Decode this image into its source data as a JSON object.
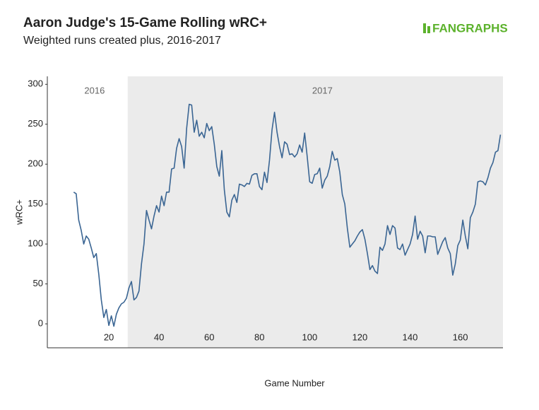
{
  "chart_data": {
    "type": "line",
    "title": "Aaron Judge's 15-Game Rolling wRC+",
    "subtitle": "Weighted runs created plus, 2016-2017",
    "logo": "FANGRAPHS",
    "xlabel": "Game Number",
    "ylabel": "wRC+",
    "xlim": [
      -4.5,
      177
    ],
    "ylim": [
      -30,
      310
    ],
    "xticks": [
      20,
      40,
      60,
      80,
      100,
      120,
      140,
      160
    ],
    "yticks": [
      0,
      50,
      100,
      150,
      200,
      250,
      300
    ],
    "regions": [
      {
        "label": "2016",
        "x": [
          -4.5,
          27.5
        ],
        "fill": "#ffffff"
      },
      {
        "label": "2017",
        "x": [
          27.5,
          177
        ],
        "fill": "#ebebeb"
      }
    ],
    "x": [
      6,
      7,
      8,
      9,
      10,
      11,
      12,
      13,
      14,
      15,
      16,
      17,
      18,
      19,
      20,
      21,
      22,
      23,
      24,
      25,
      26,
      27,
      28,
      29,
      30,
      31,
      32,
      33,
      34,
      35,
      36,
      37,
      38,
      39,
      40,
      41,
      42,
      43,
      44,
      45,
      46,
      47,
      48,
      49,
      50,
      51,
      52,
      53,
      54,
      55,
      56,
      57,
      58,
      59,
      60,
      61,
      62,
      63,
      64,
      65,
      66,
      67,
      68,
      69,
      70,
      71,
      72,
      73,
      74,
      75,
      76,
      77,
      78,
      79,
      80,
      81,
      82,
      83,
      84,
      85,
      86,
      87,
      88,
      89,
      90,
      91,
      92,
      93,
      94,
      95,
      96,
      97,
      98,
      99,
      100,
      101,
      102,
      103,
      104,
      105,
      106,
      107,
      108,
      109,
      110,
      111,
      112,
      113,
      114,
      115,
      116,
      117,
      118,
      119,
      120,
      121,
      122,
      123,
      124,
      125,
      126,
      127,
      128,
      129,
      130,
      131,
      132,
      133,
      134,
      135,
      136,
      137,
      138,
      139,
      140,
      141,
      142,
      143,
      144,
      145,
      146,
      147,
      148,
      149,
      150,
      151,
      152,
      153,
      154,
      155,
      156,
      157,
      158,
      159,
      160,
      161,
      162,
      163,
      164,
      165,
      166,
      167,
      168,
      169,
      170,
      171,
      172,
      173,
      174,
      175,
      176
    ],
    "series": [
      {
        "name": "wRC+",
        "color": "#3a6593",
        "values": [
          165,
          163,
          130,
          117,
          100,
          110,
          106,
          95,
          83,
          88,
          62,
          30,
          8,
          18,
          -2,
          10,
          -3,
          12,
          20,
          25,
          27,
          32,
          45,
          53,
          30,
          33,
          41,
          75,
          100,
          142,
          130,
          119,
          135,
          148,
          140,
          160,
          148,
          165,
          165,
          194,
          195,
          220,
          232,
          222,
          195,
          245,
          275,
          274,
          240,
          255,
          235,
          240,
          233,
          251,
          242,
          247,
          225,
          197,
          185,
          217,
          168,
          140,
          134,
          155,
          162,
          152,
          175,
          174,
          172,
          176,
          175,
          186,
          188,
          188,
          172,
          168,
          190,
          177,
          205,
          243,
          265,
          240,
          222,
          208,
          228,
          225,
          212,
          213,
          209,
          213,
          224,
          215,
          239,
          210,
          178,
          176,
          187,
          188,
          195,
          170,
          180,
          185,
          197,
          216,
          205,
          207,
          190,
          162,
          150,
          120,
          96,
          100,
          104,
          110,
          115,
          118,
          106,
          88,
          68,
          73,
          66,
          63,
          96,
          92,
          100,
          123,
          112,
          123,
          120,
          95,
          93,
          100,
          86,
          93,
          100,
          112,
          135,
          106,
          116,
          110,
          89,
          110,
          110,
          109,
          109,
          87,
          95,
          103,
          108,
          95,
          88,
          61,
          75,
          98,
          105,
          130,
          110,
          94,
          133,
          140,
          150,
          178,
          179,
          178,
          174,
          183,
          195,
          202,
          215,
          217,
          237
        ]
      }
    ]
  }
}
